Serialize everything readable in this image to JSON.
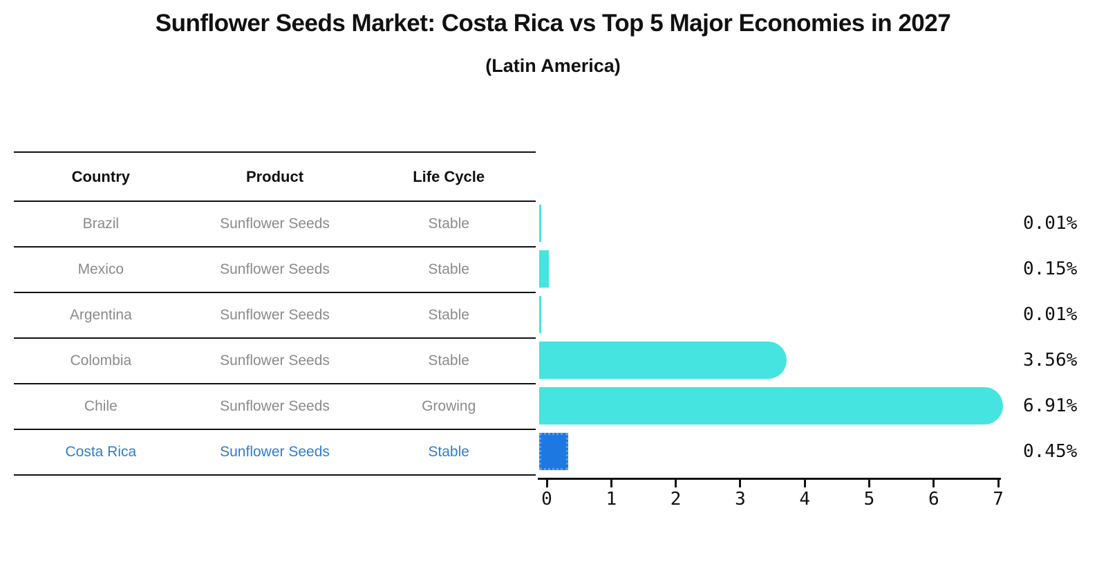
{
  "title": "Sunflower Seeds Market: Costa Rica vs Top 5 Major Economies in 2027",
  "subtitle": "(Latin America)",
  "table": {
    "headers": [
      "Country",
      "Product",
      "Life Cycle"
    ],
    "rows": [
      {
        "country": "Brazil",
        "product": "Sunflower Seeds",
        "life_cycle": "Stable",
        "highlighted": false
      },
      {
        "country": "Mexico",
        "product": "Sunflower Seeds",
        "life_cycle": "Stable",
        "highlighted": false
      },
      {
        "country": "Argentina",
        "product": "Sunflower Seeds",
        "life_cycle": "Stable",
        "highlighted": false
      },
      {
        "country": "Colombia",
        "product": "Sunflower Seeds",
        "life_cycle": "Stable",
        "highlighted": false
      },
      {
        "country": "Chile",
        "product": "Sunflower Seeds",
        "life_cycle": "Growing",
        "highlighted": false
      },
      {
        "country": "Costa Rica",
        "product": "Sunflower Seeds",
        "life_cycle": "Stable",
        "highlighted": true
      }
    ]
  },
  "chart_data": {
    "type": "bar",
    "orientation": "horizontal",
    "categories": [
      "Brazil",
      "Mexico",
      "Argentina",
      "Colombia",
      "Chile",
      "Costa Rica"
    ],
    "values": [
      0.01,
      0.15,
      0.01,
      3.56,
      6.91,
      0.45
    ],
    "value_labels": [
      "0.01%",
      "0.15%",
      "0.01%",
      "3.56%",
      "6.91%",
      "0.45%"
    ],
    "highlight_index": 5,
    "bar_color": "#46e4e0",
    "highlight_color": "#1e78e2",
    "xlim": [
      0,
      7
    ],
    "x_tick_labels": [
      "0",
      "1",
      "2",
      "3",
      "4",
      "5",
      "6",
      "7"
    ],
    "grid": false,
    "legend": false,
    "title": "Sunflower Seeds Market: Costa Rica vs Top 5 Major Economies in 2027 (Latin America)"
  },
  "colors": {
    "accent_blue_text": "#2e7dcb",
    "bar_cyan": "#46e4e0",
    "bar_blue": "#1e78e2",
    "row_text_gray": "#8a8a8a",
    "line_black": "#111111"
  }
}
